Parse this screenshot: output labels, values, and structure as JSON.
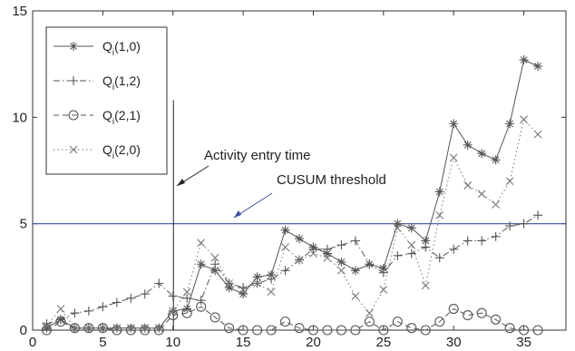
{
  "chart_data": {
    "type": "line",
    "title": "",
    "xlabel": "",
    "ylabel": "",
    "xlim": [
      0,
      38
    ],
    "ylim": [
      0,
      15
    ],
    "x_ticks": [
      0,
      5,
      10,
      15,
      20,
      25,
      30,
      35
    ],
    "y_ticks": [
      0,
      5,
      10,
      15
    ],
    "x_tick_labels": [
      "0",
      "5",
      "10",
      "15",
      "20",
      "25",
      "30",
      "35"
    ],
    "y_tick_labels": [
      "0",
      "5",
      "10",
      "15"
    ],
    "grid": false,
    "legend_placement": "top-left",
    "x": [
      1,
      2,
      3,
      4,
      5,
      6,
      7,
      8,
      9,
      10,
      11,
      12,
      13,
      14,
      15,
      16,
      17,
      18,
      19,
      20,
      21,
      22,
      23,
      24,
      25,
      26,
      27,
      28,
      29,
      30,
      31,
      32,
      33,
      34,
      35,
      36
    ],
    "series": [
      {
        "name": "Q",
        "name_sub": "i",
        "name_args": "(1,0)",
        "marker": "asterisk",
        "style": "solid",
        "color": "#555555",
        "values": [
          0.1,
          0.5,
          0.1,
          0.1,
          0.1,
          0.1,
          0.1,
          0.1,
          0.1,
          0.9,
          1.0,
          3.1,
          2.8,
          2.0,
          1.7,
          2.5,
          2.6,
          4.7,
          4.3,
          3.9,
          3.6,
          3.2,
          2.8,
          3.1,
          2.9,
          5.0,
          4.8,
          4.2,
          6.5,
          9.7,
          8.7,
          8.3,
          8.0,
          9.7,
          12.7,
          12.4
        ]
      },
      {
        "name": "Q",
        "name_sub": "i",
        "name_args": "(1,2)",
        "marker": "plus",
        "style": "dashdot",
        "color": "#555555",
        "values": [
          0.3,
          0.5,
          0.8,
          0.9,
          1.1,
          1.3,
          1.5,
          1.7,
          2.2,
          1.6,
          1.5,
          1.4,
          3.1,
          2.2,
          2.0,
          2.2,
          2.4,
          2.8,
          3.3,
          3.8,
          3.8,
          4.0,
          4.2,
          3.1,
          2.7,
          3.5,
          3.6,
          3.9,
          3.4,
          3.8,
          4.2,
          4.2,
          4.4,
          4.9,
          5.0,
          5.4
        ]
      },
      {
        "name": "Q",
        "name_sub": "i",
        "name_args": "(2,1)",
        "marker": "circle",
        "style": "dashed",
        "color": "#555555",
        "values": [
          0.0,
          0.4,
          0.1,
          0.1,
          0.1,
          0.0,
          0.0,
          0.0,
          0.0,
          0.7,
          0.8,
          1.1,
          0.6,
          0.1,
          0.0,
          0.0,
          0.0,
          0.4,
          0.1,
          0.0,
          0.0,
          0.0,
          0.0,
          0.4,
          0.0,
          0.4,
          0.1,
          0.0,
          0.4,
          1.0,
          0.7,
          0.8,
          0.5,
          0.1,
          0.0,
          0.0
        ]
      },
      {
        "name": "Q",
        "name_sub": "i",
        "name_args": "(2,0)",
        "marker": "x",
        "style": "dotted",
        "color": "#777777",
        "values": [
          0.2,
          1.0,
          0.1,
          0.1,
          0.1,
          0.1,
          0.1,
          0.1,
          0.1,
          0.9,
          1.8,
          4.1,
          3.4,
          2.2,
          1.9,
          2.2,
          1.8,
          3.9,
          3.3,
          3.6,
          3.4,
          2.8,
          1.6,
          0.8,
          1.9,
          4.8,
          4.0,
          2.1,
          5.4,
          8.1,
          6.8,
          6.4,
          5.9,
          7.0,
          9.9,
          9.2
        ]
      }
    ],
    "threshold": {
      "label": "CUSUM threshold",
      "y": 5,
      "color": "#3b4d9b"
    },
    "event": {
      "label": "Activity entry time",
      "x": 10
    }
  }
}
